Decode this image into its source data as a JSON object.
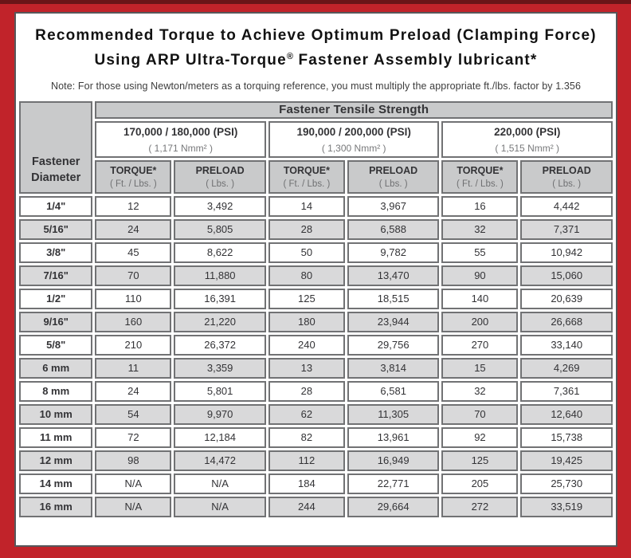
{
  "header": {
    "title_line1": "Recommended Torque to Achieve Optimum Preload (Clamping Force)",
    "title_line2_pre": "Using ARP Ultra-Torque",
    "title_reg": "®",
    "title_line2_post": " Fastener Assembly lubricant*",
    "note": "Note: For those using Newton/meters as a torquing reference, you must multiply the appropriate ft./lbs. factor by 1.356"
  },
  "colors": {
    "frame_red": "#c1232a",
    "frame_dark_strip": "#6a1518",
    "content_border": "#56575a",
    "header_gray": "#c9cacb",
    "stripe_gray": "#d9d9da",
    "cell_border": "#717274"
  },
  "chart_data": {
    "type": "table",
    "title": "Recommended Torque to Achieve Optimum Preload (Clamping Force) Using ARP Ultra-Torque® Fastener Assembly lubricant*",
    "note": "Note: For those using Newton/meters as a torquing reference, you must multiply the appropriate ft./lbs. factor by 1.356",
    "tensile_header": "Fastener Tensile Strength",
    "diameter_header": "Fastener Diameter",
    "groups": [
      {
        "psi": "170,000 / 180,000 (PSI)",
        "nmm": "( 1,171 Nmm² )"
      },
      {
        "psi": "190,000 / 200,000 (PSI)",
        "nmm": "( 1,300 Nmm² )"
      },
      {
        "psi": "220,000 (PSI)",
        "nmm": "( 1,515 Nmm² )"
      }
    ],
    "sub_columns": {
      "torque_label": "TORQUE*",
      "torque_unit": "( Ft. / Lbs. )",
      "preload_label": "PRELOAD",
      "preload_unit": "( Lbs. )"
    },
    "rows": [
      {
        "diameter": "1/4\"",
        "values": [
          "12",
          "3,492",
          "14",
          "3,967",
          "16",
          "4,442"
        ]
      },
      {
        "diameter": "5/16\"",
        "values": [
          "24",
          "5,805",
          "28",
          "6,588",
          "32",
          "7,371"
        ]
      },
      {
        "diameter": "3/8\"",
        "values": [
          "45",
          "8,622",
          "50",
          "9,782",
          "55",
          "10,942"
        ]
      },
      {
        "diameter": "7/16\"",
        "values": [
          "70",
          "11,880",
          "80",
          "13,470",
          "90",
          "15,060"
        ]
      },
      {
        "diameter": "1/2\"",
        "values": [
          "110",
          "16,391",
          "125",
          "18,515",
          "140",
          "20,639"
        ]
      },
      {
        "diameter": "9/16\"",
        "values": [
          "160",
          "21,220",
          "180",
          "23,944",
          "200",
          "26,668"
        ]
      },
      {
        "diameter": "5/8\"",
        "values": [
          "210",
          "26,372",
          "240",
          "29,756",
          "270",
          "33,140"
        ]
      },
      {
        "diameter": "6 mm",
        "values": [
          "11",
          "3,359",
          "13",
          "3,814",
          "15",
          "4,269"
        ]
      },
      {
        "diameter": "8 mm",
        "values": [
          "24",
          "5,801",
          "28",
          "6,581",
          "32",
          "7,361"
        ]
      },
      {
        "diameter": "10 mm",
        "values": [
          "54",
          "9,970",
          "62",
          "11,305",
          "70",
          "12,640"
        ]
      },
      {
        "diameter": "11 mm",
        "values": [
          "72",
          "12,184",
          "82",
          "13,961",
          "92",
          "15,738"
        ]
      },
      {
        "diameter": "12 mm",
        "values": [
          "98",
          "14,472",
          "112",
          "16,949",
          "125",
          "19,425"
        ]
      },
      {
        "diameter": "14 mm",
        "values": [
          "N/A",
          "N/A",
          "184",
          "22,771",
          "205",
          "25,730"
        ]
      },
      {
        "diameter": "16 mm",
        "values": [
          "N/A",
          "N/A",
          "244",
          "29,664",
          "272",
          "33,519"
        ]
      }
    ]
  }
}
